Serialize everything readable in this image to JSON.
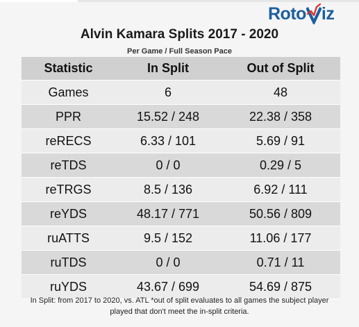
{
  "logo": {
    "text_left": "Roto",
    "text_right": "iz",
    "brand_color": "#1d5f9e",
    "accent_color": "#d9342b"
  },
  "chart_data": {
    "type": "table",
    "title": "Alvin Kamara Splits 2017 - 2020",
    "subtitle": "Per Game / Full Season Pace",
    "columns": [
      "Statistic",
      "In Split",
      "Out of Split"
    ],
    "rows": [
      [
        "Games",
        "6",
        "48"
      ],
      [
        "PPR",
        "15.52 / 248",
        "22.38 / 358"
      ],
      [
        "reRECS",
        "6.33 / 101",
        "5.69 / 91"
      ],
      [
        "reTDS",
        "0 / 0",
        "0.29 / 5"
      ],
      [
        "reTRGS",
        "8.5 / 136",
        "6.92 / 111"
      ],
      [
        "reYDS",
        "48.17 / 771",
        "50.56 / 809"
      ],
      [
        "ruATTS",
        "9.5 / 152",
        "11.06 / 177"
      ],
      [
        "ruTDS",
        "0 / 0",
        "0.71 / 11"
      ],
      [
        "ruYDS",
        "43.67 / 699",
        "54.69 / 875"
      ]
    ],
    "footnote_line1": "In Split: from 2017 to 2020, vs. ATL *out of split evaluates to all games the subject player",
    "footnote_line2": "played that don't meet the in-split criteria."
  }
}
